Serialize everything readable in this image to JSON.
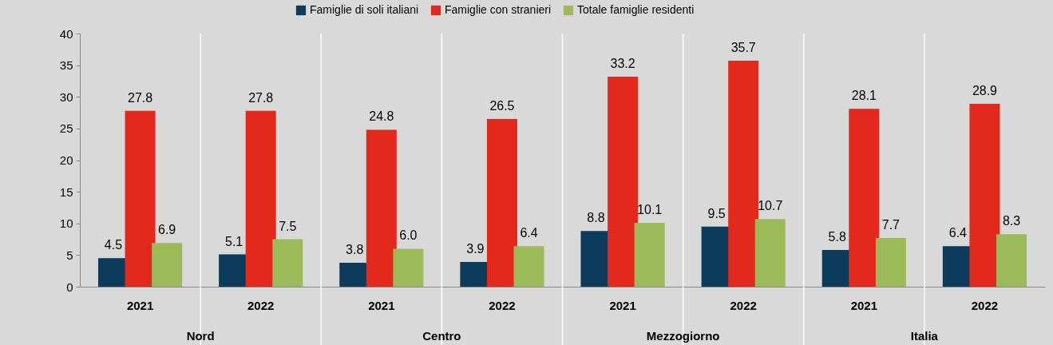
{
  "chart_data": {
    "type": "bar",
    "categories": [
      "2021",
      "2022",
      "2021",
      "2022",
      "2021",
      "2022",
      "2021",
      "2022"
    ],
    "series": [
      {
        "name": "Famiglie di soli italiani",
        "color": "#0d3b5c",
        "values": [
          4.5,
          5.1,
          3.8,
          3.9,
          8.8,
          9.5,
          5.8,
          6.4
        ],
        "value_labels": [
          "4.5",
          "5.1",
          "3.8",
          "3.9",
          "8.8",
          "9.5",
          "5.8",
          "6.4"
        ]
      },
      {
        "name": "Famiglie con stranieri",
        "color": "#e3281c",
        "values": [
          27.8,
          27.8,
          24.8,
          26.5,
          33.2,
          35.7,
          28.1,
          28.9
        ],
        "value_labels": [
          "27.8",
          "27.8",
          "24.8",
          "26.5",
          "33.2",
          "35.7",
          "28.1",
          "28.9"
        ]
      },
      {
        "name": "Totale famiglie residenti",
        "color": "#9bbb59",
        "values": [
          6.9,
          7.5,
          6.0,
          6.4,
          10.1,
          10.7,
          7.7,
          8.3
        ],
        "value_labels": [
          "6.9",
          "7.5",
          "6.0",
          "6.4",
          "10.1",
          "10.7",
          "7.7",
          "8.3"
        ]
      }
    ],
    "annotations": [
      "Nord",
      "Centro",
      "Mezzogiorno",
      "Italia"
    ],
    "ylim": [
      0,
      40
    ],
    "yticks": [
      0,
      5,
      10,
      15,
      20,
      25,
      30,
      35,
      40
    ],
    "grid": "x",
    "legend": "top"
  }
}
